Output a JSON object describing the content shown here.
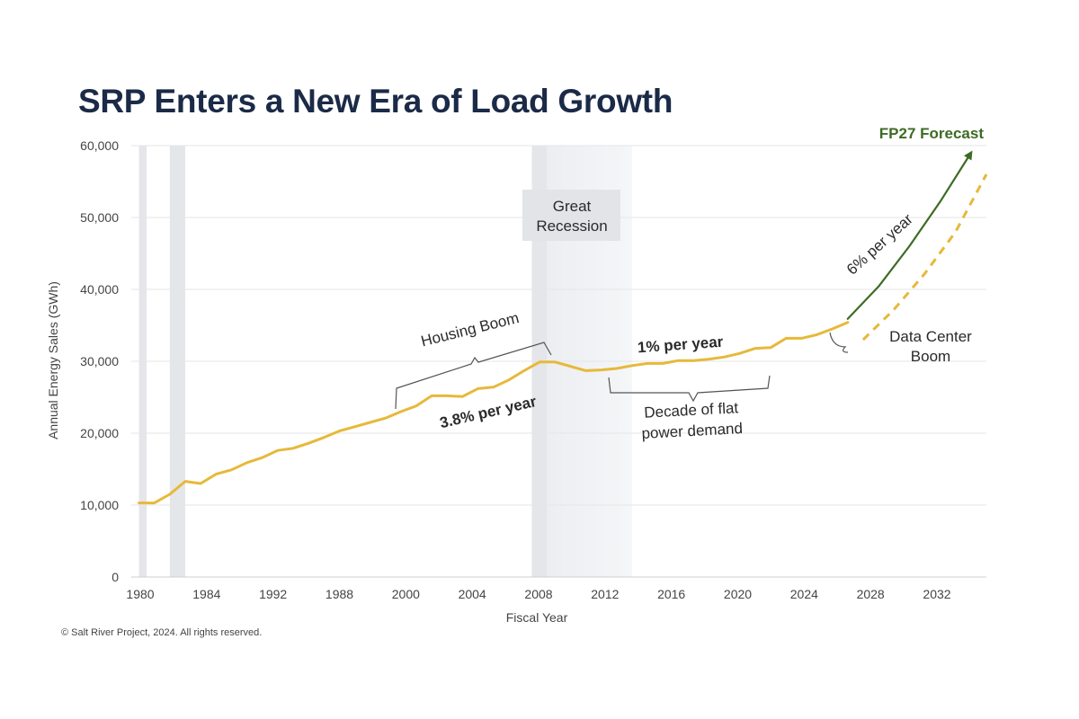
{
  "chart_data": {
    "type": "line",
    "title": "SRP Enters a New Era of Load Growth",
    "xlabel": "Fiscal Year",
    "ylabel": "Annual Energy Sales (GWh)",
    "ylim": [
      0,
      60000
    ],
    "y_ticks": [
      "0",
      "10,000",
      "20,000",
      "30,000",
      "40,000",
      "50,000",
      "60,000"
    ],
    "x_ticks": [
      "1980",
      "1984",
      "1992",
      "1988",
      "2000",
      "2004",
      "2008",
      "2012",
      "2016",
      "2020",
      "2024",
      "2028",
      "2032"
    ],
    "grid": true,
    "colors": {
      "historical": "#e6b93a",
      "forecast": "#3d6b25",
      "shading": "#e4e6ea",
      "grid": "#e6e6e6"
    },
    "series": [
      {
        "name": "",
        "style": "solid",
        "x": [
          1980,
          1981,
          1982,
          1983,
          1984,
          1985,
          1986,
          1987,
          1988,
          1989,
          1990,
          1991,
          1992,
          1993,
          1994,
          1995,
          1996,
          1997,
          1998,
          1999,
          2000,
          2001,
          2002,
          2003,
          2004,
          2005,
          2006,
          2007,
          2008,
          2009,
          2010,
          2011,
          2012,
          2013,
          2014,
          2015,
          2016,
          2017,
          2018,
          2019,
          2020,
          2021,
          2022,
          2023,
          2024,
          2025,
          2026
        ],
        "values": [
          10300,
          10300,
          11500,
          13300,
          13000,
          14300,
          14900,
          15900,
          16600,
          17600,
          17900,
          18600,
          19400,
          20300,
          20900,
          21500,
          22100,
          23000,
          23800,
          25200,
          25200,
          25100,
          26200,
          26400,
          27400,
          28700,
          29900,
          29900,
          29300,
          28700,
          28800,
          29000,
          29400,
          29700,
          29700,
          30100,
          30100,
          30300,
          30600,
          31100,
          31800,
          31900,
          33200,
          33200,
          33700,
          34500,
          35400
        ]
      },
      {
        "name": "",
        "style": "arrow",
        "x": [
          2026,
          2028,
          2030,
          2032,
          2034
        ],
        "values": [
          35900,
          40400,
          46000,
          52200,
          59000
        ]
      },
      {
        "name": "",
        "style": "dashed",
        "x": [
          2027,
          2029,
          2031,
          2033,
          2035
        ],
        "values": [
          33000,
          37200,
          42200,
          48000,
          56000
        ]
      }
    ],
    "shaded_periods": [
      {
        "from": 1980.0,
        "to": 1980.5
      },
      {
        "from": 1982.0,
        "to": 1983.0
      },
      {
        "from": 2005.5,
        "to": 2006.5
      },
      {
        "from": 2006.5,
        "to": 2012.0
      }
    ],
    "annotations": {
      "recession_line1": "Great",
      "recession_line2": "Recession",
      "housing_boom": "Housing Boom",
      "growth_38": "3.8% per year",
      "growth_1": "1% per year",
      "flat_line1": "Decade of flat",
      "flat_line2": "power demand",
      "growth_6": "6% per year",
      "dc_line1": "Data Center",
      "dc_line2": "Boom",
      "forecast": "FP27 Forecast"
    }
  },
  "footer": {
    "copyright": "© Salt River Project, 2024. All rights reserved."
  }
}
